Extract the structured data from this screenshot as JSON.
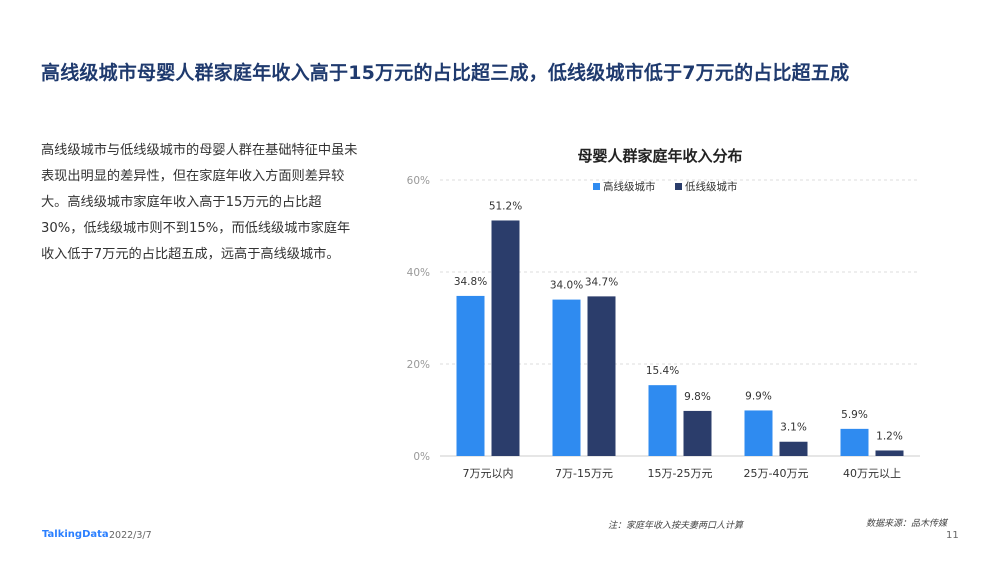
{
  "page": {
    "title": "高线级城市母婴人群家庭年收入高于15万元的占比超三成，低线级城市低于7万元的占比超五成",
    "body": "高线级城市与低线级城市的母婴人群在基础特征中虽未表现出明显的差异性，但在家庭年收入方面则差异较大。高线级城市家庭年收入高于15万元的占比超30%，低线级城市则不到15%，而低线级城市家庭年收入低于7万元的占比超五成，远高于高线级城市。",
    "logo": "TalkingData",
    "date": "2022/3/7",
    "note": "注：家庭年收入按夫妻两口人计算",
    "source": "数据来源：品木传媒",
    "page_number": "11"
  },
  "colors": {
    "series1": "#2f8bf0",
    "series2": "#2b3d6b",
    "grid": "#dddddd",
    "axis_text": "#999999"
  },
  "chart_data": {
    "type": "bar",
    "title": "母婴人群家庭年收入分布",
    "categories": [
      "7万元以内",
      "7万-15万元",
      "15万-25万元",
      "25万-40万元",
      "40万元以上"
    ],
    "series": [
      {
        "name": "高线级城市",
        "values": [
          34.8,
          34.0,
          15.4,
          9.9,
          5.9
        ],
        "labels": [
          "34.8%",
          "34.0%",
          "15.4%",
          "9.9%",
          "5.9%"
        ]
      },
      {
        "name": "低线级城市",
        "values": [
          51.2,
          34.7,
          9.8,
          3.1,
          1.2
        ],
        "labels": [
          "51.2%",
          "34.7%",
          "9.8%",
          "3.1%",
          "1.2%"
        ]
      }
    ],
    "ylim": [
      0,
      60
    ],
    "yticks": [
      "0%",
      "20%",
      "40%",
      "60%"
    ],
    "ytick_values": [
      0,
      20,
      40,
      60
    ],
    "grid": true,
    "legend_position": "top"
  }
}
